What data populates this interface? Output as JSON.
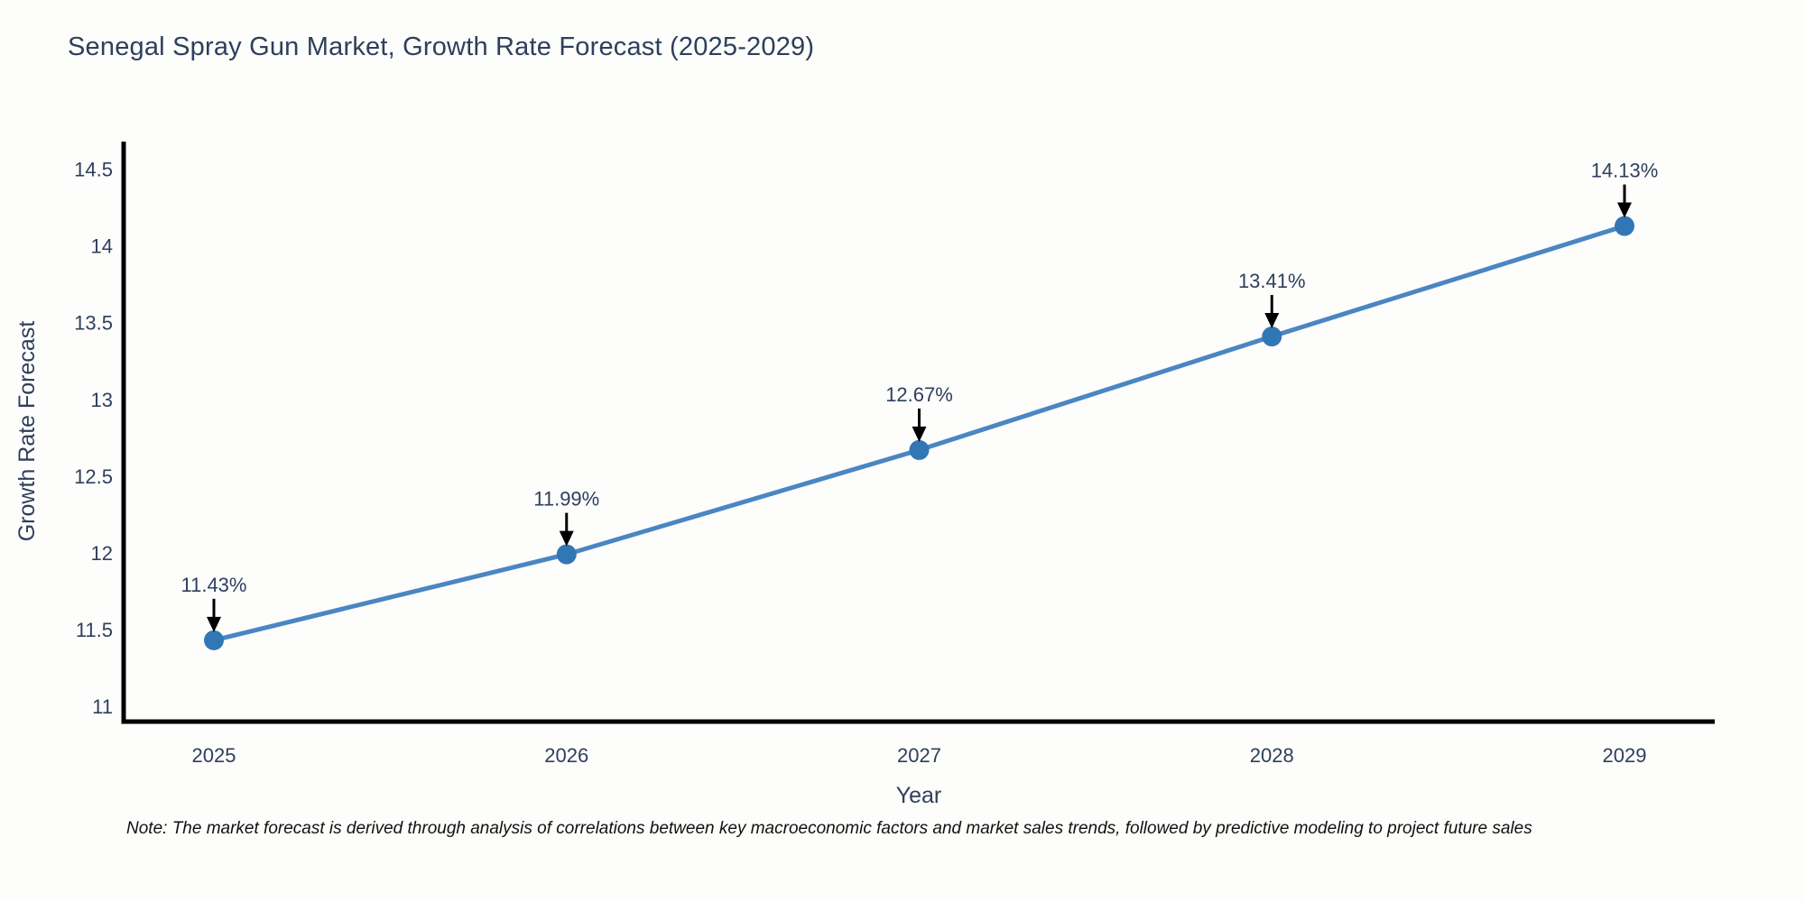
{
  "title": "Senegal Spray Gun Market, Growth Rate Forecast (2025-2029)",
  "note": "Note: The market forecast is derived through analysis of correlations between key macroeconomic factors and market sales trends, followed by predictive modeling to project future sales",
  "chart_data": {
    "type": "line",
    "title": "Senegal Spray Gun Market, Growth Rate Forecast (2025-2029)",
    "xlabel": "Year",
    "ylabel": "Growth Rate Forecast",
    "categories": [
      "2025",
      "2026",
      "2027",
      "2028",
      "2029"
    ],
    "values": [
      11.43,
      11.99,
      12.67,
      13.41,
      14.13
    ],
    "point_labels": [
      "11.43%",
      "11.99%",
      "12.67%",
      "13.41%",
      "14.13%"
    ],
    "yticks": [
      11,
      11.5,
      12,
      12.5,
      13,
      13.5,
      14,
      14.5
    ],
    "ylim": [
      10.9,
      14.68
    ],
    "grid": false,
    "legend": "none",
    "marker": "circle",
    "annotation_arrows": "down"
  },
  "colors": {
    "background": "#fdfdfb",
    "line": "#4a86c2",
    "marker": "#3277b5",
    "axis": "#000000",
    "text": "#2e3f5c",
    "annotation_text": "#2e3f5c",
    "annotation_arrow": "#000000",
    "note_text": "#111111"
  }
}
